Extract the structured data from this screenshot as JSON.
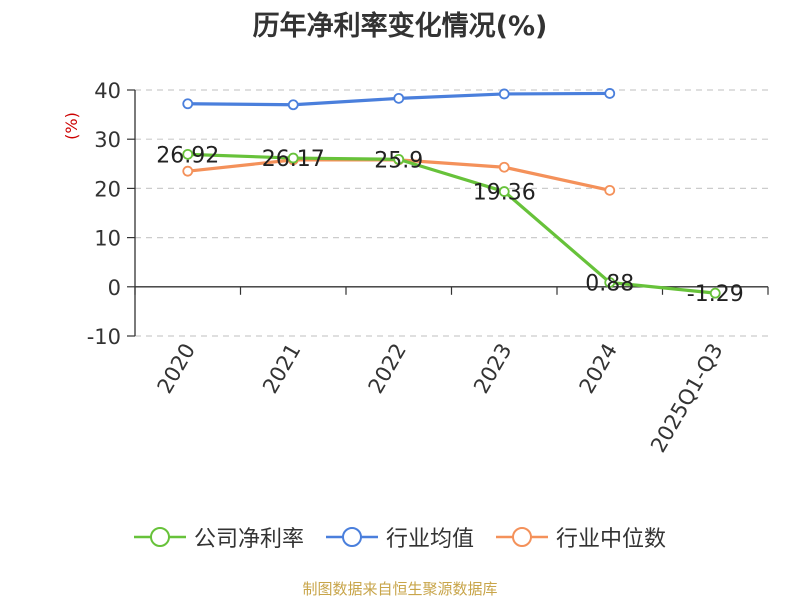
{
  "title": "历年净利率变化情况(%)",
  "source_note": "制图数据来自恒生聚源数据库",
  "colors": {
    "company": "#67c23a",
    "industry_avg": "#4a7fdc",
    "industry_median": "#f4915a",
    "axis": "#333333",
    "grid": "#cccccc",
    "unit_label": "#cc0000"
  },
  "chart_data": {
    "type": "line",
    "title": "历年净利率变化情况(%)",
    "ylabel": "(%)",
    "xlabel": "",
    "ylim": [
      -10,
      40
    ],
    "yticks": [
      40,
      30,
      20,
      10,
      0,
      -10
    ],
    "grid": true,
    "legend_position": "bottom",
    "categories": [
      "2020",
      "2021",
      "2022",
      "2023",
      "2024",
      "2025Q1-Q3"
    ],
    "series": [
      {
        "name": "公司净利率",
        "key": "company",
        "values": [
          26.92,
          26.17,
          25.9,
          19.36,
          0.88,
          -1.29
        ],
        "labels": [
          "26.92",
          "26.17",
          "25.9",
          "19.36",
          "0.88",
          "-1.29"
        ]
      },
      {
        "name": "行业均值",
        "key": "industry_avg",
        "values": [
          37.2,
          37.0,
          38.3,
          39.2,
          39.3,
          null
        ]
      },
      {
        "name": "行业中位数",
        "key": "industry_median",
        "values": [
          23.5,
          25.8,
          25.8,
          24.3,
          19.6,
          null
        ]
      }
    ]
  }
}
